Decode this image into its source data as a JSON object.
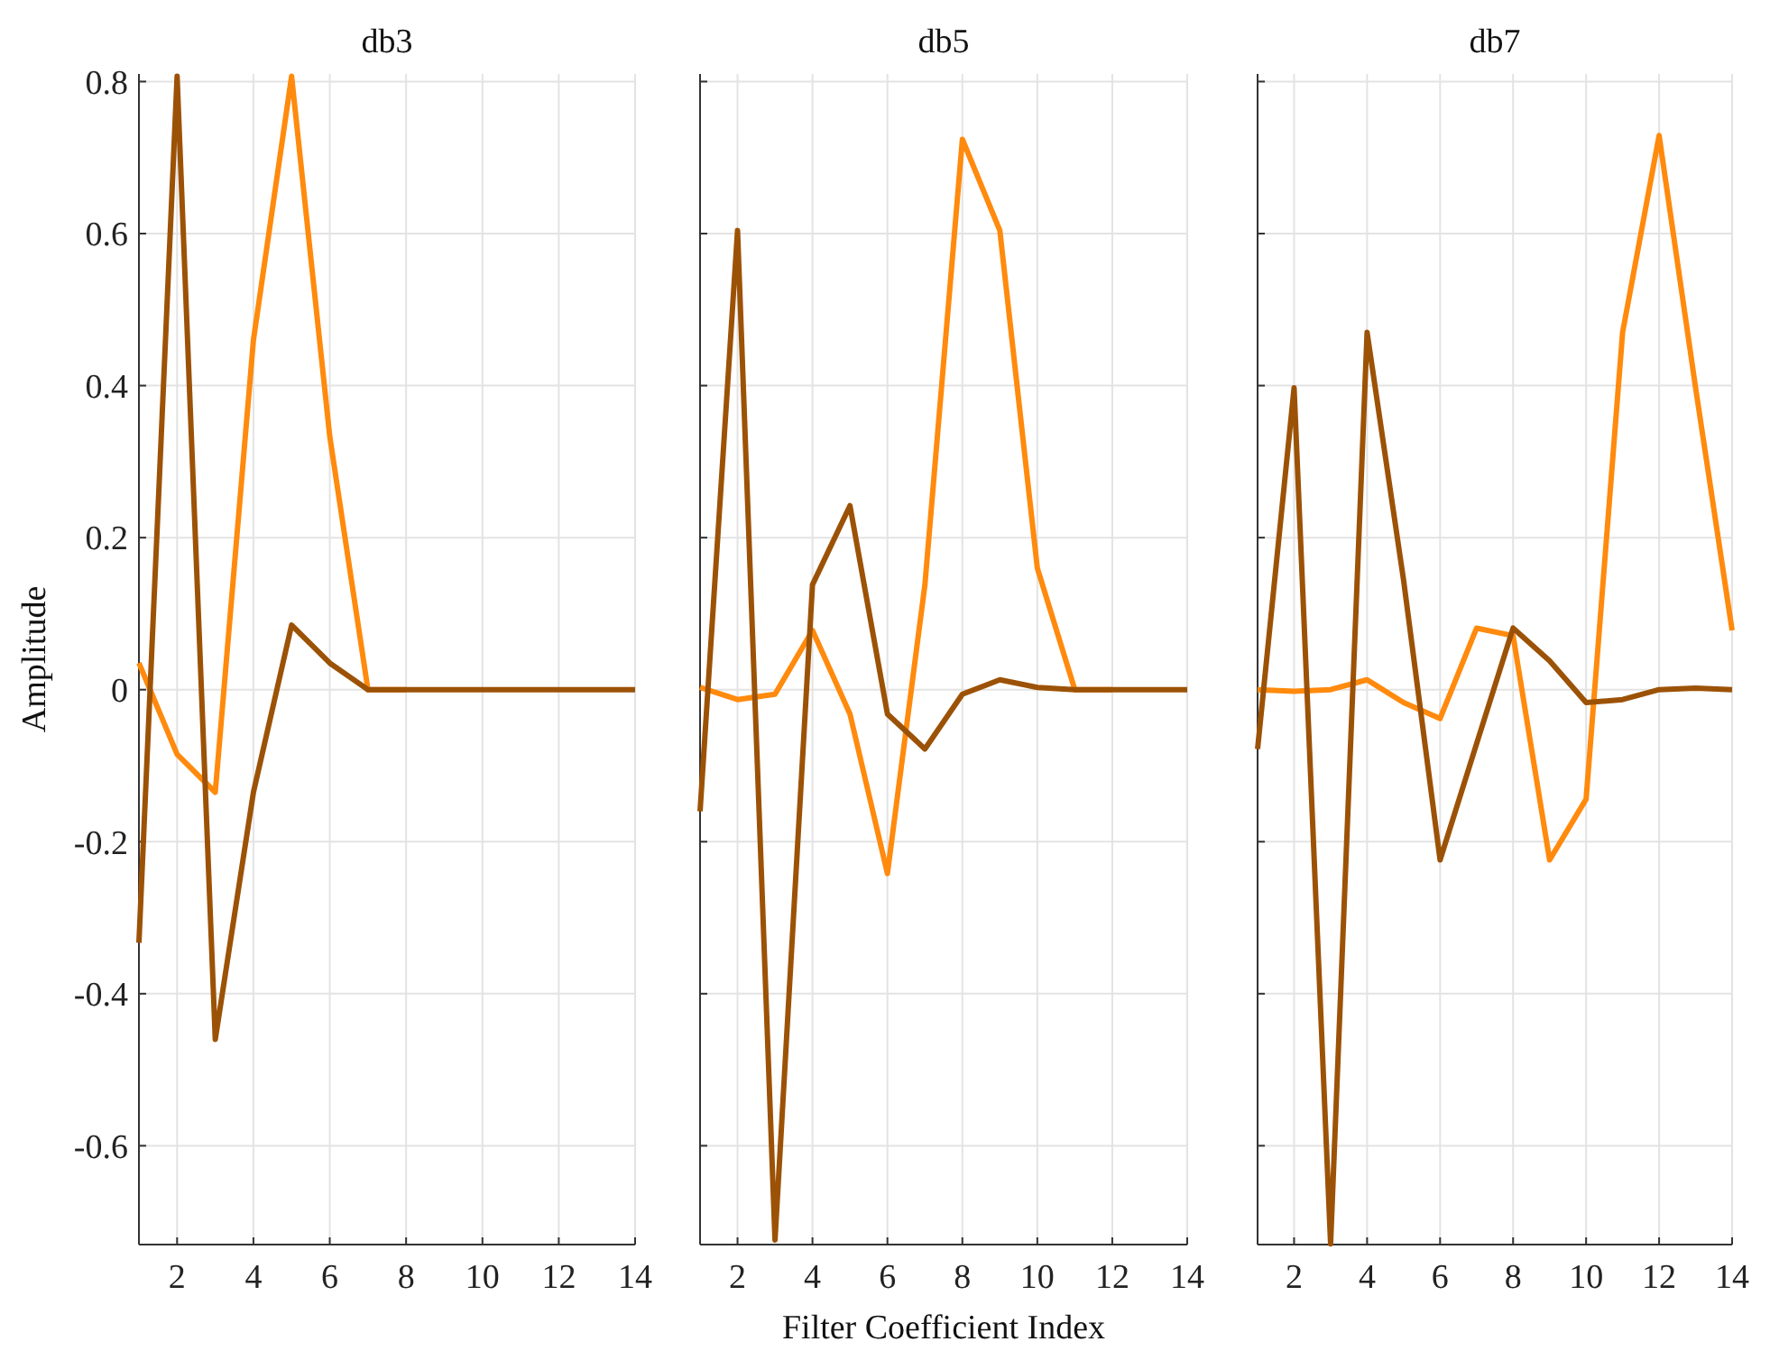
{
  "chart_data": [
    {
      "type": "line",
      "title": "db3",
      "ylabel": "Amplitude",
      "x": [
        1,
        2,
        3,
        4,
        5,
        6,
        7,
        8,
        9,
        10,
        11,
        12,
        13,
        14
      ],
      "xlim": [
        1,
        14
      ],
      "xticks": [
        2,
        4,
        6,
        8,
        10,
        12,
        14
      ],
      "ylim": [
        -0.73,
        0.81
      ],
      "yticks": [
        -0.6,
        -0.4,
        -0.2,
        0,
        0.2,
        0.4,
        0.6,
        0.8
      ],
      "grid": true,
      "marker": "none",
      "line_style": "solid",
      "series": [
        {
          "color": "#ff8a0d",
          "values": [
            0.035,
            -0.085,
            -0.135,
            0.46,
            0.807,
            0.333,
            0,
            0,
            null,
            null,
            null,
            null,
            null,
            null
          ]
        },
        {
          "color": "#9c5206",
          "values": [
            -0.333,
            0.807,
            -0.46,
            -0.135,
            0.085,
            0.035,
            0,
            0,
            0,
            0,
            0,
            0,
            0,
            0
          ]
        }
      ]
    },
    {
      "type": "line",
      "title": "db5",
      "xlabel": "Filter Coefficient Index",
      "x": [
        1,
        2,
        3,
        4,
        5,
        6,
        7,
        8,
        9,
        10,
        11,
        12,
        13,
        14
      ],
      "xlim": [
        1,
        14
      ],
      "xticks": [
        2,
        4,
        6,
        8,
        10,
        12,
        14
      ],
      "ylim": [
        -0.73,
        0.81
      ],
      "yticks": [
        -0.6,
        -0.4,
        -0.2,
        0,
        0.2,
        0.4,
        0.6,
        0.8
      ],
      "grid": true,
      "marker": "none",
      "line_style": "solid",
      "tick_labels": "x",
      "series": [
        {
          "color": "#ff8a0d",
          "values": [
            0.003,
            -0.013,
            -0.006,
            0.078,
            -0.032,
            -0.242,
            0.138,
            0.724,
            0.604,
            0.16,
            0,
            0,
            null,
            null
          ]
        },
        {
          "color": "#9c5206",
          "values": [
            -0.16,
            0.604,
            -0.724,
            0.138,
            0.242,
            -0.032,
            -0.078,
            -0.006,
            0.013,
            0.003,
            0,
            0,
            0,
            0
          ]
        }
      ]
    },
    {
      "type": "line",
      "title": "db7",
      "x": [
        1,
        2,
        3,
        4,
        5,
        6,
        7,
        8,
        9,
        10,
        11,
        12,
        13,
        14
      ],
      "xlim": [
        1,
        14
      ],
      "xticks": [
        2,
        4,
        6,
        8,
        10,
        12,
        14
      ],
      "ylim": [
        -0.73,
        0.81
      ],
      "yticks": [
        -0.6,
        -0.4,
        -0.2,
        0,
        0.2,
        0.4,
        0.6,
        0.8
      ],
      "grid": true,
      "marker": "none",
      "line_style": "solid",
      "tick_labels": "x",
      "series": [
        {
          "color": "#ff8a0d",
          "values": [
            0,
            -0.002,
            0,
            0.013,
            -0.017,
            -0.038,
            0.081,
            0.071,
            -0.224,
            -0.144,
            0.47,
            0.729,
            0.397,
            0.078
          ]
        },
        {
          "color": "#9c5206",
          "values": [
            -0.078,
            0.397,
            -0.729,
            0.47,
            0.144,
            -0.224,
            -0.071,
            0.081,
            0.038,
            -0.017,
            -0.013,
            0,
            0.002,
            0
          ]
        }
      ]
    }
  ]
}
